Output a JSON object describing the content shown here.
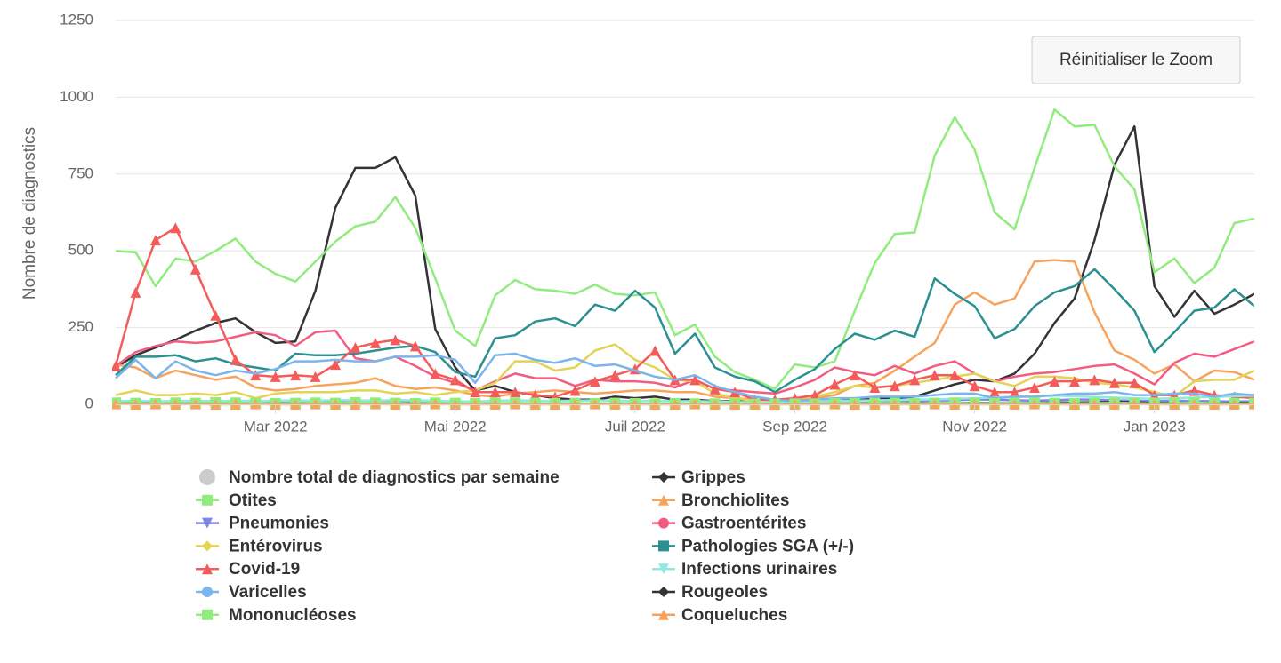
{
  "chart_data": {
    "type": "line",
    "y_axis_label": "Nombre de diagnostics",
    "reset_zoom_button": "Réinitialiser le Zoom",
    "ylim": [
      0,
      1250
    ],
    "yticks": [
      0,
      250,
      500,
      750,
      1000,
      1250
    ],
    "grid": true,
    "categories": [
      null,
      null,
      null,
      null,
      null,
      null,
      null,
      null,
      "Mar 2022",
      null,
      null,
      null,
      null,
      null,
      null,
      null,
      null,
      "Mai 2022",
      null,
      null,
      null,
      null,
      null,
      null,
      null,
      null,
      "Juil 2022",
      null,
      null,
      null,
      null,
      null,
      null,
      null,
      "Sep 2022",
      null,
      null,
      null,
      null,
      null,
      null,
      null,
      null,
      "Nov 2022",
      null,
      null,
      null,
      null,
      null,
      null,
      null,
      null,
      "Jan 2023",
      null,
      null,
      null,
      null,
      null
    ],
    "series": [
      {
        "name": "Nombre total de diagnostics par semaine",
        "color": "#cccccc",
        "marker": "circle",
        "visible": false,
        "show_markers": false
      },
      {
        "name": "Grippes",
        "color": "#333338",
        "marker": "diamond",
        "visible": true,
        "show_markers": false,
        "values": [
          120,
          160,
          185,
          210,
          240,
          265,
          280,
          235,
          200,
          205,
          370,
          640,
          770,
          770,
          805,
          680,
          245,
          120,
          45,
          60,
          40,
          30,
          20,
          15,
          15,
          25,
          20,
          25,
          15,
          15,
          10,
          10,
          10,
          5,
          5,
          10,
          10,
          15,
          20,
          20,
          25,
          45,
          65,
          80,
          75,
          100,
          165,
          265,
          345,
          535,
          780,
          905,
          385,
          285,
          370,
          295,
          325,
          360
        ]
      },
      {
        "name": "Otites",
        "color": "#90ed7d",
        "marker": "square",
        "visible": true,
        "show_markers": false,
        "values": [
          500,
          495,
          385,
          475,
          465,
          500,
          540,
          465,
          425,
          400,
          465,
          530,
          580,
          595,
          675,
          575,
          410,
          240,
          190,
          355,
          405,
          375,
          370,
          360,
          390,
          360,
          355,
          365,
          225,
          260,
          155,
          105,
          80,
          50,
          130,
          120,
          140,
          305,
          460,
          555,
          560,
          810,
          935,
          830,
          625,
          570,
          770,
          960,
          905,
          910,
          775,
          700,
          430,
          475,
          395,
          445,
          590,
          605
        ]
      },
      {
        "name": "Bronchiolites",
        "color": "#f7a35c",
        "marker": "triangle",
        "visible": true,
        "show_markers": false,
        "values": [
          130,
          120,
          85,
          110,
          95,
          80,
          90,
          55,
          45,
          50,
          60,
          65,
          70,
          85,
          60,
          50,
          55,
          45,
          30,
          25,
          35,
          40,
          45,
          40,
          35,
          40,
          45,
          45,
          40,
          40,
          25,
          20,
          15,
          10,
          15,
          20,
          30,
          60,
          70,
          110,
          155,
          200,
          325,
          365,
          325,
          345,
          465,
          470,
          465,
          300,
          175,
          145,
          100,
          130,
          75,
          110,
          105,
          80
        ]
      },
      {
        "name": "Pneumonies",
        "color": "#8085e9",
        "marker": "triangle-down",
        "visible": true,
        "show_markers": false,
        "values": [
          8,
          6,
          5,
          7,
          5,
          6,
          8,
          6,
          5,
          7,
          9,
          10,
          12,
          10,
          8,
          6,
          5,
          4,
          3,
          3,
          2,
          3,
          2,
          2,
          3,
          2,
          2,
          3,
          2,
          2,
          1,
          1,
          1,
          1,
          2,
          2,
          3,
          5,
          6,
          8,
          10,
          12,
          14,
          16,
          15,
          13,
          12,
          14,
          16,
          15,
          13,
          12,
          10,
          12,
          11,
          10,
          9,
          10
        ]
      },
      {
        "name": "Gastroentérites",
        "color": "#f15c80",
        "marker": "circle",
        "visible": true,
        "show_markers": false,
        "values": [
          125,
          170,
          190,
          205,
          200,
          205,
          220,
          235,
          225,
          190,
          235,
          240,
          150,
          140,
          155,
          125,
          90,
          70,
          45,
          75,
          100,
          85,
          85,
          60,
          80,
          75,
          75,
          70,
          55,
          80,
          50,
          45,
          40,
          35,
          55,
          80,
          120,
          105,
          95,
          125,
          100,
          125,
          140,
          100,
          75,
          90,
          100,
          105,
          115,
          125,
          130,
          100,
          65,
          135,
          165,
          155,
          180,
          205
        ]
      },
      {
        "name": "Entérovirus",
        "color": "#e4d354",
        "marker": "diamond",
        "visible": true,
        "show_markers": false,
        "values": [
          30,
          45,
          30,
          30,
          35,
          30,
          40,
          20,
          35,
          40,
          40,
          40,
          45,
          45,
          35,
          40,
          30,
          40,
          45,
          70,
          140,
          140,
          110,
          120,
          175,
          195,
          145,
          120,
          80,
          75,
          35,
          20,
          10,
          10,
          20,
          25,
          40,
          60,
          55,
          60,
          70,
          80,
          90,
          100,
          75,
          60,
          90,
          90,
          85,
          70,
          65,
          55,
          40,
          25,
          75,
          80,
          80,
          110
        ]
      },
      {
        "name": "Pathologies SGA (+/-)",
        "color": "#2b908f",
        "marker": "square",
        "visible": true,
        "show_markers": false,
        "values": [
          95,
          155,
          155,
          160,
          140,
          150,
          130,
          120,
          110,
          165,
          160,
          160,
          165,
          175,
          185,
          190,
          170,
          105,
          90,
          215,
          225,
          270,
          280,
          255,
          325,
          305,
          370,
          315,
          165,
          230,
          120,
          90,
          75,
          40,
          80,
          115,
          180,
          230,
          210,
          240,
          220,
          410,
          360,
          320,
          215,
          245,
          320,
          365,
          385,
          440,
          375,
          305,
          170,
          235,
          305,
          315,
          375,
          320
        ]
      },
      {
        "name": "Covid-19",
        "color": "#f45b5b",
        "marker": "triangle",
        "visible": true,
        "show_markers": true,
        "values": [
          125,
          365,
          535,
          575,
          440,
          290,
          145,
          95,
          90,
          95,
          90,
          130,
          185,
          200,
          210,
          190,
          100,
          80,
          40,
          40,
          40,
          30,
          25,
          45,
          75,
          95,
          115,
          175,
          80,
          80,
          50,
          40,
          15,
          15,
          20,
          30,
          65,
          95,
          55,
          60,
          80,
          95,
          95,
          60,
          40,
          40,
          55,
          75,
          75,
          80,
          70,
          70,
          30,
          30,
          45,
          30,
          25,
          20
        ]
      },
      {
        "name": "Infections urinaires",
        "color": "#91e8e1",
        "marker": "triangle-down",
        "visible": true,
        "show_markers": false,
        "values": [
          10,
          12,
          10,
          11,
          12,
          10,
          12,
          11,
          12,
          13,
          12,
          14,
          13,
          12,
          14,
          13,
          12,
          10,
          9,
          12,
          13,
          12,
          11,
          12,
          13,
          12,
          11,
          12,
          10,
          11,
          9,
          8,
          7,
          6,
          8,
          9,
          11,
          12,
          13,
          14,
          15,
          16,
          18,
          20,
          22,
          24,
          25,
          28,
          26,
          24,
          22,
          20,
          18,
          20,
          22,
          24,
          26,
          28
        ]
      },
      {
        "name": "Varicelles",
        "color": "#7cb5ec",
        "marker": "circle",
        "visible": true,
        "show_markers": false,
        "values": [
          85,
          145,
          85,
          140,
          110,
          95,
          110,
          100,
          115,
          140,
          140,
          145,
          140,
          140,
          155,
          155,
          160,
          145,
          70,
          160,
          165,
          145,
          135,
          150,
          125,
          130,
          110,
          90,
          80,
          95,
          60,
          40,
          25,
          15,
          10,
          15,
          20,
          20,
          25,
          25,
          25,
          30,
          35,
          35,
          20,
          25,
          25,
          30,
          35,
          35,
          40,
          30,
          30,
          35,
          35,
          25,
          35,
          30
        ]
      },
      {
        "name": "Rougeoles",
        "color": "#333338",
        "marker": "diamond",
        "visible": true,
        "show_markers": false,
        "values": [
          5,
          4,
          4,
          3,
          4,
          3,
          4,
          3,
          3,
          4,
          4,
          3,
          4,
          3,
          3,
          4,
          3,
          2,
          2,
          3,
          2,
          2,
          3,
          2,
          2,
          3,
          2,
          2,
          2,
          2,
          1,
          1,
          1,
          1,
          1,
          2,
          2,
          2,
          3,
          3,
          4,
          4,
          5,
          5,
          4,
          4,
          5,
          6,
          6,
          7,
          8,
          7,
          5,
          5,
          4,
          4,
          5,
          5
        ]
      },
      {
        "name": "Mononucléoses",
        "color": "#90ed7d",
        "marker": "square",
        "visible": true,
        "show_markers": true,
        "values": [
          5,
          4,
          3,
          5,
          4,
          6,
          5,
          4,
          3,
          4,
          5,
          4,
          6,
          5,
          4,
          3,
          5,
          4,
          3,
          4,
          5,
          4,
          3,
          4,
          3,
          4,
          3,
          2,
          3,
          2,
          2,
          2,
          1,
          1,
          2,
          2,
          3,
          3,
          4,
          4,
          3,
          4,
          5,
          4,
          3,
          4,
          5,
          4,
          3,
          4,
          5,
          4,
          3,
          4,
          5,
          4,
          3,
          4
        ]
      },
      {
        "name": "Coqueluches",
        "color": "#f7a35c",
        "marker": "triangle",
        "visible": true,
        "show_markers": true,
        "values": [
          1,
          0,
          1,
          0,
          1,
          0,
          0,
          1,
          0,
          0,
          1,
          0,
          0,
          1,
          0,
          0,
          1,
          0,
          0,
          0,
          1,
          0,
          0,
          0,
          1,
          0,
          0,
          0,
          0,
          1,
          0,
          0,
          0,
          0,
          0,
          0,
          1,
          0,
          0,
          0,
          0,
          1,
          0,
          0,
          0,
          0,
          1,
          0,
          0,
          0,
          0,
          1,
          0,
          0,
          0,
          0,
          0,
          1
        ]
      }
    ]
  }
}
